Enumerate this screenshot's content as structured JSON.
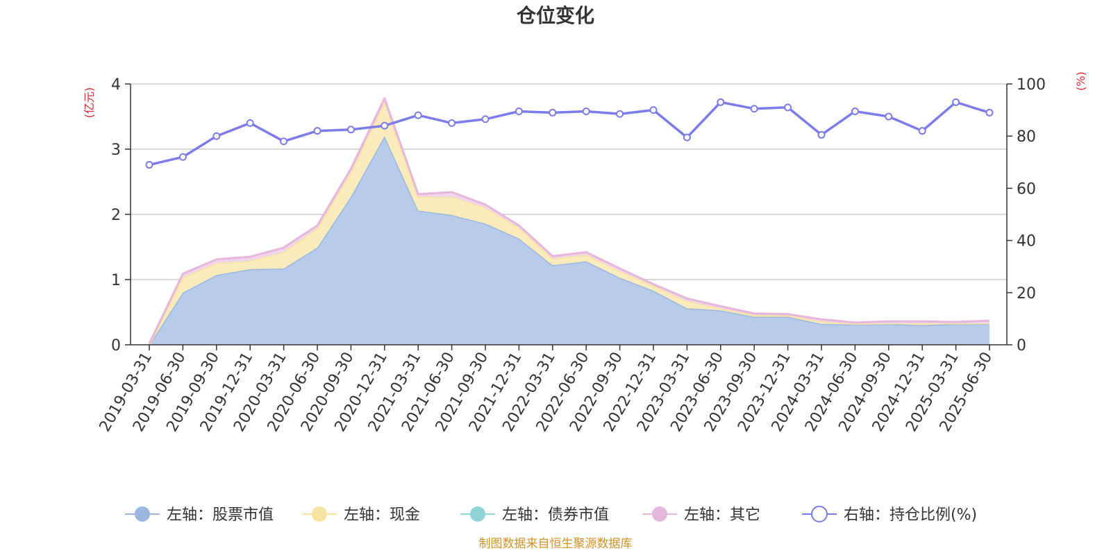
{
  "chart_data": {
    "type": "area",
    "title": "仓位变化",
    "left_unit": "(亿元)",
    "right_unit": "(%)",
    "left_ylim": [
      0,
      4
    ],
    "left_ticks": [
      0,
      1,
      2,
      3,
      4
    ],
    "right_ylim": [
      0,
      100
    ],
    "right_ticks": [
      0,
      20,
      40,
      60,
      80,
      100
    ],
    "grid": true,
    "legend_position": "bottom",
    "source": "制图数据来自恒生聚源数据库",
    "categories": [
      "2019-03-31",
      "2019-06-30",
      "2019-09-30",
      "2019-12-31",
      "2020-03-31",
      "2020-06-30",
      "2020-09-30",
      "2020-12-31",
      "2021-03-31",
      "2021-06-30",
      "2021-09-30",
      "2021-12-31",
      "2022-03-31",
      "2022-06-30",
      "2022-09-30",
      "2022-12-31",
      "2023-03-31",
      "2023-06-30",
      "2023-09-30",
      "2023-12-31",
      "2024-03-31",
      "2024-06-30",
      "2024-09-30",
      "2024-12-31",
      "2025-03-31",
      "2025-06-30"
    ],
    "series": [
      {
        "name": "左轴：股票市值",
        "axis": "left",
        "kind": "stacked-area",
        "color": "#9bb7e0",
        "fill": "#b7cbea",
        "values": [
          0.0,
          0.8,
          1.07,
          1.16,
          1.17,
          1.49,
          2.27,
          3.2,
          2.06,
          1.99,
          1.86,
          1.63,
          1.22,
          1.28,
          1.03,
          0.83,
          0.56,
          0.53,
          0.43,
          0.43,
          0.32,
          0.31,
          0.32,
          0.3,
          0.32,
          0.32
        ]
      },
      {
        "name": "左轴：现金",
        "axis": "left",
        "kind": "stacked-area",
        "color": "#f7e3a1",
        "fill": "#f9ebbb",
        "values": [
          0.0,
          0.24,
          0.18,
          0.13,
          0.25,
          0.3,
          0.38,
          0.52,
          0.21,
          0.28,
          0.24,
          0.17,
          0.1,
          0.1,
          0.1,
          0.08,
          0.11,
          0.03,
          0.03,
          0.02,
          0.04,
          0.01,
          0.01,
          0.03,
          0.01,
          0.01
        ]
      },
      {
        "name": "左轴：债券市值",
        "axis": "left",
        "kind": "stacked-area",
        "color": "#8fd3d6",
        "fill": "#bfe6e8",
        "values": [
          0,
          0,
          0,
          0,
          0,
          0,
          0,
          0,
          0,
          0,
          0,
          0,
          0,
          0,
          0,
          0,
          0,
          0,
          0,
          0,
          0,
          0,
          0,
          0,
          0,
          0
        ]
      },
      {
        "name": "左轴：其它",
        "axis": "left",
        "kind": "stacked-area",
        "color": "#e6b6dc",
        "fill": "#f1d6eb",
        "values": [
          0.02,
          0.05,
          0.06,
          0.06,
          0.07,
          0.04,
          0.05,
          0.06,
          0.04,
          0.07,
          0.05,
          0.03,
          0.04,
          0.04,
          0.04,
          0.02,
          0.04,
          0.03,
          0.02,
          0.02,
          0.03,
          0.02,
          0.03,
          0.03,
          0.02,
          0.04
        ]
      },
      {
        "name": "右轴：持仓比例(%)",
        "axis": "right",
        "kind": "line",
        "color": "#7b7bea",
        "values": [
          69,
          72,
          80,
          85,
          78,
          82,
          82.5,
          84,
          88,
          85,
          86.5,
          89.5,
          89,
          89.5,
          88.5,
          90,
          79.5,
          93,
          90.5,
          91,
          80.5,
          89.5,
          87.5,
          82,
          93,
          89
        ]
      }
    ]
  }
}
